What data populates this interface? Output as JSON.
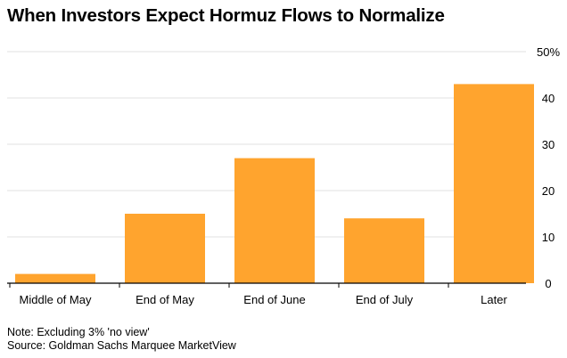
{
  "title": "When Investors Expect Hormuz Flows to Normalize",
  "note": "Note: Excluding 3% 'no view'",
  "source": "Source: Goldman Sachs Marquee MarketView",
  "colors": {
    "bar": "#ffa42e",
    "grid": "#e0e0e0",
    "axis": "#000000"
  },
  "chart_data": {
    "type": "bar",
    "categories": [
      "Middle of May",
      "End of May",
      "End of June",
      "End of July",
      "Later"
    ],
    "values": [
      2,
      15,
      27,
      14,
      43
    ],
    "y_ticks": [
      "0",
      "10",
      "20",
      "30",
      "40",
      "50%"
    ],
    "ylim": [
      0,
      50
    ],
    "grid": true,
    "yaxis_position": "right"
  }
}
